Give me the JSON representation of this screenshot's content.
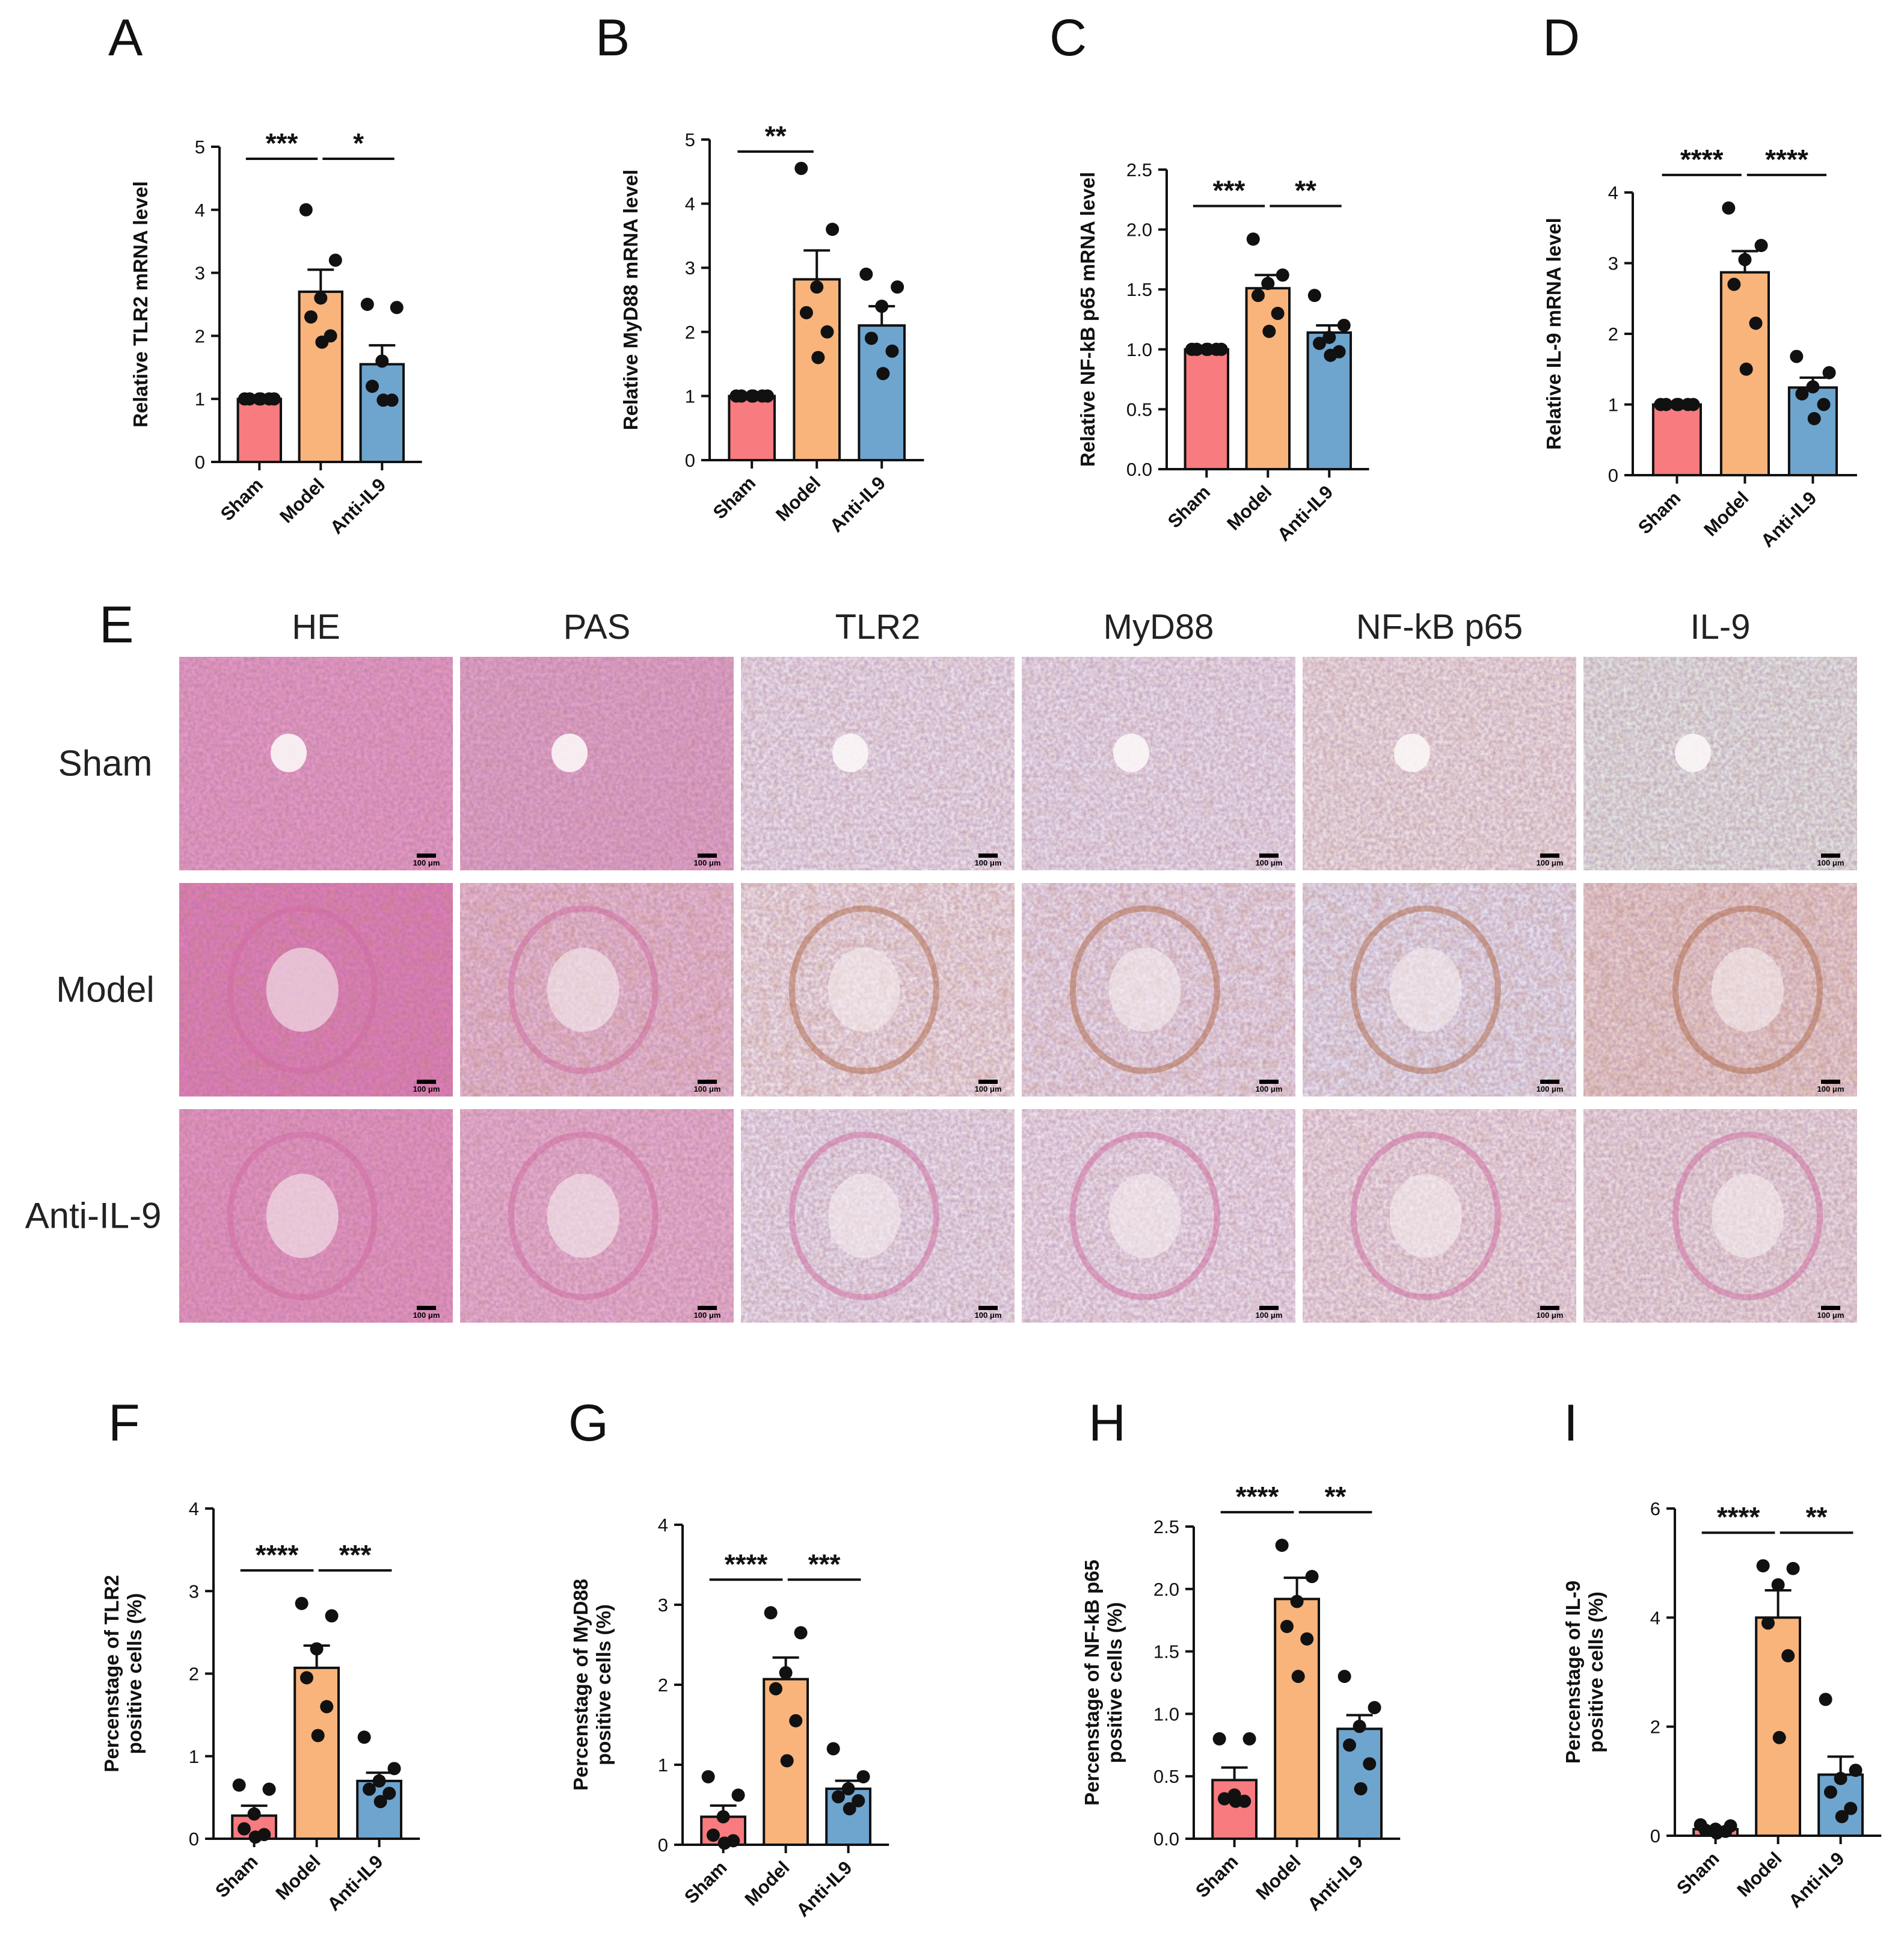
{
  "colors": {
    "sham": "#f77b7f",
    "model": "#f8b47b",
    "anti": "#6ea5cf",
    "stroke": "#111111"
  },
  "panels": [
    "A",
    "B",
    "C",
    "D",
    "E",
    "F",
    "G",
    "H",
    "I"
  ],
  "histology": {
    "columns": [
      "HE",
      "PAS",
      "TLR2",
      "MyD88",
      "NF-kB p65",
      "IL-9"
    ],
    "rows": [
      "Sham",
      "Model",
      "Anti-IL-9"
    ],
    "scale_label": "100 μm"
  },
  "chart_data": [
    {
      "panel": "A",
      "type": "bar",
      "categories": [
        "Sham",
        "Model",
        "Anti-IL9"
      ],
      "ylabel": [
        "Relative TLR2 mRNA level"
      ],
      "ylim": [
        0,
        5
      ],
      "yticks": [
        "0",
        "1",
        "2",
        "3",
        "4",
        "5"
      ],
      "values": [
        1.0,
        2.7,
        1.55
      ],
      "sem": [
        0.02,
        0.35,
        0.3
      ],
      "points": [
        [
          1,
          1,
          1,
          1,
          1,
          1
        ],
        [
          4.0,
          3.2,
          2.6,
          2.3,
          2.0,
          1.9
        ],
        [
          2.5,
          2.45,
          1.6,
          1.2,
          0.98,
          0.98
        ]
      ],
      "sig": [
        {
          "from": 0,
          "to": 1,
          "label": "***"
        },
        {
          "from": 1,
          "to": 2,
          "label": "*"
        }
      ]
    },
    {
      "panel": "B",
      "type": "bar",
      "categories": [
        "Sham",
        "Model",
        "Anti-IL9"
      ],
      "ylabel": [
        "Relative MyD88 mRNA level"
      ],
      "ylim": [
        0,
        5
      ],
      "yticks": [
        "0",
        "1",
        "2",
        "3",
        "4",
        "5"
      ],
      "values": [
        1.0,
        2.82,
        2.1
      ],
      "sem": [
        0.02,
        0.45,
        0.3
      ],
      "points": [
        [
          1,
          1,
          1,
          1,
          1,
          1
        ],
        [
          4.55,
          3.6,
          2.7,
          2.3,
          2.0,
          1.6
        ],
        [
          2.9,
          2.7,
          2.4,
          1.9,
          1.7,
          1.35
        ]
      ],
      "sig": [
        {
          "from": 0,
          "to": 1,
          "label": "**"
        }
      ]
    },
    {
      "panel": "C",
      "type": "bar",
      "categories": [
        "Sham",
        "Model",
        "Anti-IL9"
      ],
      "ylabel": [
        "Relative NF-kB p65 mRNA level"
      ],
      "ylim": [
        0,
        2.5
      ],
      "yticks": [
        "0.0",
        "0.5",
        "1.0",
        "1.5",
        "2.0",
        "2.5"
      ],
      "values": [
        1.0,
        1.51,
        1.14
      ],
      "sem": [
        0.01,
        0.11,
        0.06
      ],
      "points": [
        [
          1,
          1,
          1,
          1,
          1,
          1
        ],
        [
          1.92,
          1.62,
          1.55,
          1.45,
          1.3,
          1.15
        ],
        [
          1.45,
          1.2,
          1.1,
          1.05,
          0.98,
          0.95
        ]
      ],
      "sig": [
        {
          "from": 0,
          "to": 1,
          "label": "***"
        },
        {
          "from": 1,
          "to": 2,
          "label": "**"
        }
      ]
    },
    {
      "panel": "D",
      "type": "bar",
      "categories": [
        "Sham",
        "Model",
        "Anti-IL9"
      ],
      "ylabel": [
        "Relative IL-9 mRNA level"
      ],
      "ylim": [
        0,
        4
      ],
      "yticks": [
        "0",
        "1",
        "2",
        "3",
        "4"
      ],
      "values": [
        1.0,
        2.87,
        1.24
      ],
      "sem": [
        0.01,
        0.3,
        0.14
      ],
      "points": [
        [
          1,
          1,
          1,
          1,
          1,
          1
        ],
        [
          3.78,
          3.25,
          3.05,
          2.7,
          2.15,
          1.5
        ],
        [
          1.68,
          1.45,
          1.25,
          1.15,
          1.0,
          0.8
        ]
      ],
      "sig": [
        {
          "from": 0,
          "to": 1,
          "label": "****"
        },
        {
          "from": 1,
          "to": 2,
          "label": "****"
        }
      ]
    },
    {
      "panel": "F",
      "type": "bar",
      "categories": [
        "Sham",
        "Model",
        "Anti-IL9"
      ],
      "ylabel": [
        "Percenstage of TLR2",
        "positive cells (%)"
      ],
      "ylim": [
        0,
        4
      ],
      "yticks": [
        "0",
        "1",
        "2",
        "3",
        "4"
      ],
      "values": [
        0.28,
        2.07,
        0.7
      ],
      "sem": [
        0.12,
        0.27,
        0.1
      ],
      "points": [
        [
          0.65,
          0.6,
          0.3,
          0.12,
          0.05,
          0.02
        ],
        [
          2.85,
          2.7,
          2.3,
          1.95,
          1.6,
          1.25
        ],
        [
          1.23,
          0.85,
          0.7,
          0.6,
          0.55,
          0.45
        ]
      ],
      "sig": [
        {
          "from": 0,
          "to": 1,
          "label": "****"
        },
        {
          "from": 1,
          "to": 2,
          "label": "***"
        }
      ]
    },
    {
      "panel": "G",
      "type": "bar",
      "categories": [
        "Sham",
        "Model",
        "Anti-IL9"
      ],
      "ylabel": [
        "Percenstage of MyD88",
        "positive cells (%)"
      ],
      "ylim": [
        0,
        4
      ],
      "yticks": [
        "0",
        "1",
        "2",
        "3",
        "4"
      ],
      "values": [
        0.35,
        2.07,
        0.7
      ],
      "sem": [
        0.14,
        0.27,
        0.1
      ],
      "points": [
        [
          0.85,
          0.62,
          0.35,
          0.12,
          0.05,
          0.02
        ],
        [
          2.9,
          2.65,
          2.15,
          1.95,
          1.55,
          1.05
        ],
        [
          1.2,
          0.85,
          0.7,
          0.6,
          0.55,
          0.45
        ]
      ],
      "sig": [
        {
          "from": 0,
          "to": 1,
          "label": "****"
        },
        {
          "from": 1,
          "to": 2,
          "label": "***"
        }
      ]
    },
    {
      "panel": "H",
      "type": "bar",
      "categories": [
        "Sham",
        "Model",
        "Anti-IL9"
      ],
      "ylabel": [
        "Percenstage of NF-kB p65",
        "positive cells (%)"
      ],
      "ylim": [
        0,
        2.5
      ],
      "yticks": [
        "0.0",
        "0.5",
        "1.0",
        "1.5",
        "2.0",
        "2.5"
      ],
      "values": [
        0.47,
        1.92,
        0.88
      ],
      "sem": [
        0.1,
        0.17,
        0.11
      ],
      "points": [
        [
          0.8,
          0.8,
          0.35,
          0.32,
          0.3,
          0.3
        ],
        [
          2.35,
          2.1,
          1.9,
          1.7,
          1.6,
          1.3
        ],
        [
          1.3,
          1.05,
          0.9,
          0.75,
          0.6,
          0.4
        ]
      ],
      "sig": [
        {
          "from": 0,
          "to": 1,
          "label": "****"
        },
        {
          "from": 1,
          "to": 2,
          "label": "**"
        }
      ]
    },
    {
      "panel": "I",
      "type": "bar",
      "categories": [
        "Sham",
        "Model",
        "Anti-IL9"
      ],
      "ylabel": [
        "Percenstage of IL-9",
        "positive cells (%)"
      ],
      "ylim": [
        0,
        6
      ],
      "yticks": [
        "0",
        "2",
        "4",
        "6"
      ],
      "values": [
        0.12,
        4.0,
        1.12
      ],
      "sem": [
        0.04,
        0.5,
        0.33
      ],
      "points": [
        [
          0.2,
          0.18,
          0.12,
          0.1,
          0.08,
          0.05
        ],
        [
          4.95,
          4.9,
          4.6,
          3.9,
          3.3,
          1.8
        ],
        [
          2.5,
          1.2,
          1.05,
          0.8,
          0.5,
          0.35
        ]
      ],
      "sig": [
        {
          "from": 0,
          "to": 1,
          "label": "****"
        },
        {
          "from": 1,
          "to": 2,
          "label": "**"
        }
      ]
    }
  ]
}
